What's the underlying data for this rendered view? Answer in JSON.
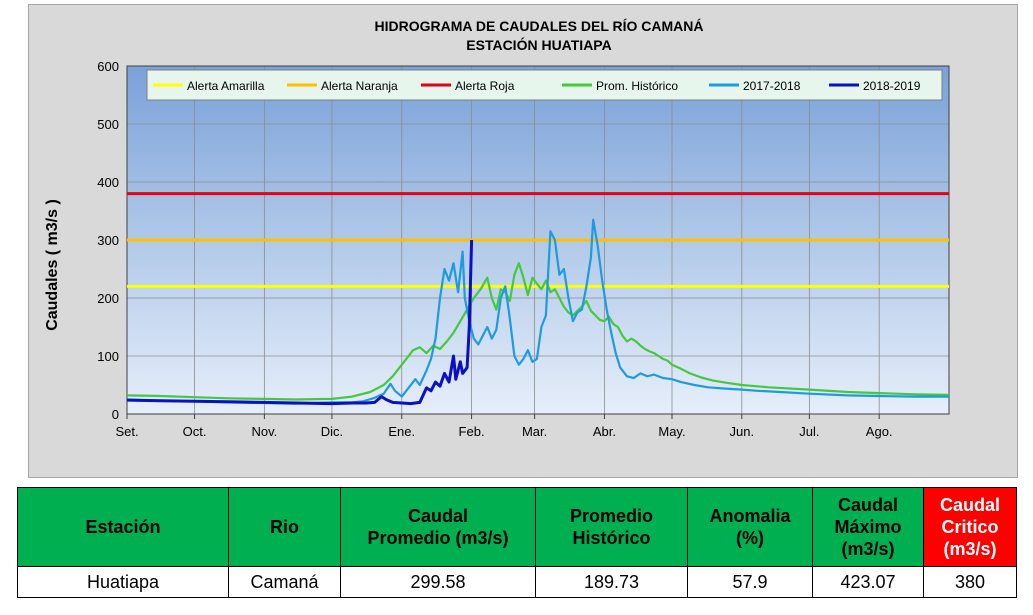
{
  "chart_data": {
    "type": "line",
    "title": "HIDROGRAMA DE CAUDALES DEL RÍO CAMANÁ",
    "subtitle": "ESTACIÓN HUATIAPA",
    "ylabel": "Caudales ( m3/s )",
    "xlabel": "",
    "ylim": [
      0,
      600
    ],
    "xlim": [
      0,
      365
    ],
    "yticks": [
      0,
      100,
      200,
      300,
      400,
      500,
      600
    ],
    "grid": true,
    "legend_position": "top",
    "month_ticks": [
      {
        "label": "Set.",
        "day": 0
      },
      {
        "label": "Oct.",
        "day": 30
      },
      {
        "label": "Nov.",
        "day": 61
      },
      {
        "label": "Dic.",
        "day": 91
      },
      {
        "label": "Ene.",
        "day": 122
      },
      {
        "label": "Feb.",
        "day": 153
      },
      {
        "label": "Mar.",
        "day": 181
      },
      {
        "label": "Abr.",
        "day": 212
      },
      {
        "label": "May.",
        "day": 242
      },
      {
        "label": "Jun.",
        "day": 273
      },
      {
        "label": "Jul.",
        "day": 303
      },
      {
        "label": "Ago.",
        "day": 334
      }
    ],
    "thresholds": [
      {
        "name": "Alerta Amarilla",
        "value": 220,
        "color": "#ffff00"
      },
      {
        "name": "Alerta Naranja",
        "value": 300,
        "color": "#ffc000"
      },
      {
        "name": "Alerta Roja",
        "value": 380,
        "color": "#e3001b"
      }
    ],
    "series": [
      {
        "name": "Prom. Histórico",
        "color": "#44c93c",
        "points": [
          [
            0,
            32
          ],
          [
            15,
            31
          ],
          [
            30,
            29
          ],
          [
            45,
            27
          ],
          [
            61,
            26
          ],
          [
            75,
            25
          ],
          [
            91,
            26
          ],
          [
            100,
            30
          ],
          [
            108,
            38
          ],
          [
            114,
            50
          ],
          [
            118,
            65
          ],
          [
            121,
            80
          ],
          [
            124,
            95
          ],
          [
            127,
            110
          ],
          [
            130,
            115
          ],
          [
            133,
            105
          ],
          [
            136,
            118
          ],
          [
            139,
            112
          ],
          [
            142,
            125
          ],
          [
            145,
            140
          ],
          [
            148,
            160
          ],
          [
            151,
            180
          ],
          [
            154,
            200
          ],
          [
            157,
            215
          ],
          [
            160,
            235
          ],
          [
            162,
            200
          ],
          [
            164,
            180
          ],
          [
            166,
            215
          ],
          [
            168,
            210
          ],
          [
            170,
            195
          ],
          [
            172,
            240
          ],
          [
            174,
            260
          ],
          [
            176,
            235
          ],
          [
            178,
            205
          ],
          [
            180,
            235
          ],
          [
            182,
            225
          ],
          [
            184,
            215
          ],
          [
            186,
            230
          ],
          [
            188,
            210
          ],
          [
            190,
            215
          ],
          [
            192,
            200
          ],
          [
            194,
            185
          ],
          [
            196,
            175
          ],
          [
            198,
            170
          ],
          [
            200,
            178
          ],
          [
            202,
            185
          ],
          [
            204,
            195
          ],
          [
            206,
            178
          ],
          [
            208,
            170
          ],
          [
            210,
            162
          ],
          [
            212,
            160
          ],
          [
            214,
            168
          ],
          [
            216,
            155
          ],
          [
            218,
            150
          ],
          [
            220,
            135
          ],
          [
            222,
            125
          ],
          [
            224,
            130
          ],
          [
            226,
            125
          ],
          [
            228,
            118
          ],
          [
            230,
            112
          ],
          [
            232,
            108
          ],
          [
            234,
            105
          ],
          [
            236,
            100
          ],
          [
            238,
            95
          ],
          [
            240,
            92
          ],
          [
            242,
            85
          ],
          [
            246,
            78
          ],
          [
            250,
            70
          ],
          [
            255,
            63
          ],
          [
            260,
            58
          ],
          [
            266,
            54
          ],
          [
            273,
            50
          ],
          [
            285,
            46
          ],
          [
            303,
            42
          ],
          [
            320,
            38
          ],
          [
            334,
            36
          ],
          [
            350,
            34
          ],
          [
            365,
            33
          ]
        ]
      },
      {
        "name": "2017-2018",
        "color": "#1e9bde",
        "points": [
          [
            0,
            25
          ],
          [
            15,
            23
          ],
          [
            30,
            22
          ],
          [
            45,
            20
          ],
          [
            61,
            19
          ],
          [
            75,
            18
          ],
          [
            91,
            20
          ],
          [
            100,
            20
          ],
          [
            105,
            22
          ],
          [
            110,
            28
          ],
          [
            114,
            35
          ],
          [
            117,
            52
          ],
          [
            119,
            40
          ],
          [
            122,
            30
          ],
          [
            125,
            45
          ],
          [
            128,
            60
          ],
          [
            130,
            50
          ],
          [
            133,
            75
          ],
          [
            135,
            95
          ],
          [
            137,
            130
          ],
          [
            139,
            200
          ],
          [
            141,
            250
          ],
          [
            143,
            230
          ],
          [
            145,
            260
          ],
          [
            147,
            210
          ],
          [
            149,
            280
          ],
          [
            150,
            200
          ],
          [
            152,
            160
          ],
          [
            154,
            130
          ],
          [
            156,
            120
          ],
          [
            158,
            135
          ],
          [
            160,
            150
          ],
          [
            162,
            130
          ],
          [
            164,
            145
          ],
          [
            166,
            200
          ],
          [
            168,
            220
          ],
          [
            170,
            165
          ],
          [
            172,
            100
          ],
          [
            174,
            85
          ],
          [
            176,
            95
          ],
          [
            178,
            110
          ],
          [
            180,
            90
          ],
          [
            182,
            95
          ],
          [
            184,
            150
          ],
          [
            186,
            170
          ],
          [
            188,
            315
          ],
          [
            190,
            300
          ],
          [
            192,
            240
          ],
          [
            194,
            250
          ],
          [
            196,
            200
          ],
          [
            198,
            160
          ],
          [
            200,
            175
          ],
          [
            202,
            180
          ],
          [
            204,
            220
          ],
          [
            206,
            270
          ],
          [
            207,
            335
          ],
          [
            209,
            290
          ],
          [
            211,
            230
          ],
          [
            213,
            180
          ],
          [
            215,
            140
          ],
          [
            217,
            105
          ],
          [
            219,
            80
          ],
          [
            222,
            65
          ],
          [
            225,
            62
          ],
          [
            228,
            70
          ],
          [
            231,
            65
          ],
          [
            234,
            68
          ],
          [
            238,
            62
          ],
          [
            242,
            60
          ],
          [
            246,
            55
          ],
          [
            252,
            50
          ],
          [
            258,
            46
          ],
          [
            265,
            44
          ],
          [
            273,
            42
          ],
          [
            280,
            40
          ],
          [
            290,
            38
          ],
          [
            303,
            35
          ],
          [
            320,
            32
          ],
          [
            334,
            31
          ],
          [
            350,
            30
          ],
          [
            365,
            30
          ]
        ]
      },
      {
        "name": "2018-2019",
        "color": "#0b10c4",
        "points": [
          [
            0,
            24
          ],
          [
            15,
            23
          ],
          [
            30,
            22
          ],
          [
            45,
            21
          ],
          [
            61,
            20
          ],
          [
            75,
            19
          ],
          [
            91,
            18
          ],
          [
            100,
            19
          ],
          [
            106,
            19
          ],
          [
            110,
            20
          ],
          [
            113,
            30
          ],
          [
            115,
            25
          ],
          [
            118,
            20
          ],
          [
            122,
            19
          ],
          [
            126,
            18
          ],
          [
            130,
            20
          ],
          [
            133,
            45
          ],
          [
            135,
            40
          ],
          [
            137,
            55
          ],
          [
            139,
            48
          ],
          [
            141,
            70
          ],
          [
            143,
            55
          ],
          [
            145,
            100
          ],
          [
            146,
            60
          ],
          [
            148,
            90
          ],
          [
            149,
            70
          ],
          [
            151,
            80
          ],
          [
            152,
            150
          ],
          [
            153,
            300
          ]
        ]
      }
    ],
    "legend": [
      "Alerta Amarilla",
      "Alerta Naranja",
      "Alerta Roja",
      "Prom. Histórico",
      "2017-2018",
      "2018-2019"
    ]
  },
  "table": {
    "headers": [
      [
        "Estación"
      ],
      [
        "Rio"
      ],
      [
        "Caudal",
        "Promedio  (m3/s)"
      ],
      [
        "Promedio",
        "Histórico"
      ],
      [
        "Anomalia",
        "(%)"
      ],
      [
        "Caudal",
        "Máximo",
        "(m3/s)"
      ],
      [
        "Caudal",
        "Critico",
        "(m3/s)"
      ]
    ],
    "row": [
      "Huatiapa",
      "Camaná",
      "299.58",
      "189.73",
      "57.9",
      "423.07",
      "380"
    ],
    "critical_color": "#ff0000",
    "header_color": "#00b050"
  }
}
